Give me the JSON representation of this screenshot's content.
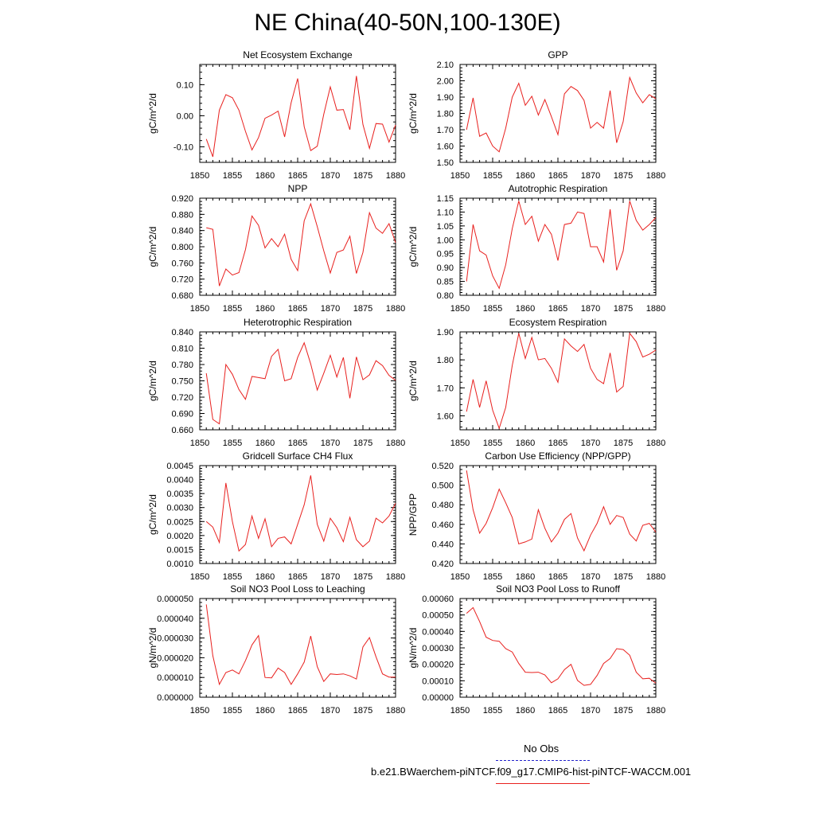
{
  "title": "NE China(40-50N,100-130E)",
  "colors": {
    "model": "#e8201e",
    "obs": "#2222cc",
    "axis": "#000000"
  },
  "legend": {
    "obs_label": "No Obs",
    "model_label": "b.e21.BWaerchem-piNTCF.f09_g17.CMIP6-hist-piNTCF-WACCM.001"
  },
  "chart_data": [
    {
      "type": "line",
      "title": "Net Ecosystem Exchange",
      "ylabel": "gC/m^2/d",
      "xlim": [
        1850,
        1880
      ],
      "ylim": [
        -0.15,
        0.165
      ],
      "xticks": [
        "1850",
        "1855",
        "1860",
        "1865",
        "1870",
        "1875",
        "1880"
      ],
      "yticks": [
        "-0.10",
        "0.00",
        "0.10"
      ],
      "x": [
        1851,
        1852,
        1853,
        1854,
        1855,
        1856,
        1857,
        1858,
        1859,
        1860,
        1861,
        1862,
        1863,
        1864,
        1865,
        1866,
        1867,
        1868,
        1869,
        1870,
        1871,
        1872,
        1873,
        1874,
        1875,
        1876,
        1877,
        1878,
        1879,
        1880
      ],
      "values": [
        -0.075,
        -0.132,
        0.018,
        0.068,
        0.058,
        0.018,
        -0.05,
        -0.11,
        -0.07,
        -0.008,
        0.002,
        0.015,
        -0.068,
        0.042,
        0.12,
        -0.035,
        -0.112,
        -0.098,
        0.005,
        0.093,
        0.018,
        0.02,
        -0.045,
        0.128,
        -0.028,
        -0.105,
        -0.025,
        -0.027,
        -0.085,
        -0.03
      ]
    },
    {
      "type": "line",
      "title": "GPP",
      "ylabel": "gC/m^2/d",
      "xlim": [
        1850,
        1880
      ],
      "ylim": [
        1.5,
        2.1
      ],
      "xticks": [
        "1850",
        "1855",
        "1860",
        "1865",
        "1870",
        "1875",
        "1880"
      ],
      "yticks": [
        "1.50",
        "1.60",
        "1.70",
        "1.80",
        "1.90",
        "2.00",
        "2.10"
      ],
      "x": [
        1851,
        1852,
        1853,
        1854,
        1855,
        1856,
        1857,
        1858,
        1859,
        1860,
        1861,
        1862,
        1863,
        1864,
        1865,
        1866,
        1867,
        1868,
        1869,
        1870,
        1871,
        1872,
        1873,
        1874,
        1875,
        1876,
        1877,
        1878,
        1879,
        1880
      ],
      "values": [
        1.7,
        1.895,
        1.66,
        1.68,
        1.6,
        1.565,
        1.71,
        1.9,
        1.985,
        1.85,
        1.905,
        1.79,
        1.885,
        1.78,
        1.67,
        1.92,
        1.965,
        1.94,
        1.88,
        1.71,
        1.745,
        1.71,
        1.94,
        1.62,
        1.75,
        2.02,
        1.925,
        1.865,
        1.915,
        1.89
      ]
    },
    {
      "type": "line",
      "title": "NPP",
      "ylabel": "gC/m^2/d",
      "xlim": [
        1850,
        1880
      ],
      "ylim": [
        0.68,
        0.92
      ],
      "xticks": [
        "1850",
        "1855",
        "1860",
        "1865",
        "1870",
        "1875",
        "1880"
      ],
      "yticks": [
        "0.680",
        "0.720",
        "0.760",
        "0.800",
        "0.840",
        "0.880",
        "0.920"
      ],
      "x": [
        1851,
        1852,
        1853,
        1854,
        1855,
        1856,
        1857,
        1858,
        1859,
        1860,
        1861,
        1862,
        1863,
        1864,
        1865,
        1866,
        1867,
        1868,
        1869,
        1870,
        1871,
        1872,
        1873,
        1874,
        1875,
        1876,
        1877,
        1878,
        1879,
        1880
      ],
      "values": [
        0.847,
        0.843,
        0.703,
        0.745,
        0.73,
        0.736,
        0.793,
        0.876,
        0.853,
        0.797,
        0.82,
        0.8,
        0.831,
        0.769,
        0.741,
        0.864,
        0.906,
        0.85,
        0.79,
        0.735,
        0.786,
        0.792,
        0.826,
        0.734,
        0.786,
        0.884,
        0.846,
        0.833,
        0.857,
        0.81
      ]
    },
    {
      "type": "line",
      "title": "Autotrophic Respiration",
      "ylabel": "gC/m^2/d",
      "xlim": [
        1850,
        1880
      ],
      "ylim": [
        0.8,
        1.15
      ],
      "xticks": [
        "1850",
        "1855",
        "1860",
        "1865",
        "1870",
        "1875",
        "1880"
      ],
      "yticks": [
        "0.80",
        "0.85",
        "0.90",
        "0.95",
        "1.00",
        "1.05",
        "1.10",
        "1.15"
      ],
      "x": [
        1851,
        1852,
        1853,
        1854,
        1855,
        1856,
        1857,
        1858,
        1859,
        1860,
        1861,
        1862,
        1863,
        1864,
        1865,
        1866,
        1867,
        1868,
        1869,
        1870,
        1871,
        1872,
        1873,
        1874,
        1875,
        1876,
        1877,
        1878,
        1879,
        1880
      ],
      "values": [
        0.85,
        1.055,
        0.96,
        0.945,
        0.87,
        0.825,
        0.91,
        1.04,
        1.14,
        1.055,
        1.085,
        0.995,
        1.055,
        1.02,
        0.925,
        1.055,
        1.06,
        1.1,
        1.095,
        0.975,
        0.975,
        0.92,
        1.11,
        0.89,
        0.96,
        1.14,
        1.07,
        1.035,
        1.055,
        1.08
      ]
    },
    {
      "type": "line",
      "title": "Heterotrophic Respiration",
      "ylabel": "gC/m^2/d",
      "xlim": [
        1850,
        1880
      ],
      "ylim": [
        0.66,
        0.84
      ],
      "xticks": [
        "1850",
        "1855",
        "1860",
        "1865",
        "1870",
        "1875",
        "1880"
      ],
      "yticks": [
        "0.660",
        "0.690",
        "0.720",
        "0.750",
        "0.780",
        "0.810",
        "0.840"
      ],
      "x": [
        1851,
        1852,
        1853,
        1854,
        1855,
        1856,
        1857,
        1858,
        1859,
        1860,
        1861,
        1862,
        1863,
        1864,
        1865,
        1866,
        1867,
        1868,
        1869,
        1870,
        1871,
        1872,
        1873,
        1874,
        1875,
        1876,
        1877,
        1878,
        1879,
        1880
      ],
      "values": [
        0.764,
        0.679,
        0.671,
        0.78,
        0.762,
        0.734,
        0.716,
        0.758,
        0.756,
        0.754,
        0.795,
        0.808,
        0.75,
        0.754,
        0.793,
        0.82,
        0.781,
        0.733,
        0.764,
        0.797,
        0.757,
        0.793,
        0.718,
        0.794,
        0.752,
        0.761,
        0.787,
        0.778,
        0.76,
        0.751
      ]
    },
    {
      "type": "line",
      "title": "Ecosystem Respiration",
      "ylabel": "gC/m^2/d",
      "xlim": [
        1850,
        1880
      ],
      "ylim": [
        1.55,
        1.9
      ],
      "xticks": [
        "1850",
        "1855",
        "1860",
        "1865",
        "1870",
        "1875",
        "1880"
      ],
      "yticks": [
        "1.60",
        "1.70",
        "1.80",
        "1.90"
      ],
      "x": [
        1851,
        1852,
        1853,
        1854,
        1855,
        1856,
        1857,
        1858,
        1859,
        1860,
        1861,
        1862,
        1863,
        1864,
        1865,
        1866,
        1867,
        1868,
        1869,
        1870,
        1871,
        1872,
        1873,
        1874,
        1875,
        1876,
        1877,
        1878,
        1879,
        1880
      ],
      "values": [
        1.615,
        1.73,
        1.63,
        1.725,
        1.62,
        1.555,
        1.63,
        1.78,
        1.895,
        1.805,
        1.88,
        1.8,
        1.805,
        1.77,
        1.72,
        1.875,
        1.85,
        1.83,
        1.855,
        1.77,
        1.73,
        1.715,
        1.825,
        1.685,
        1.705,
        1.895,
        1.865,
        1.81,
        1.82,
        1.835
      ]
    },
    {
      "type": "line",
      "title": "Gridcell Surface CH4 Flux",
      "ylabel": "gC/m^2/d",
      "xlim": [
        1850,
        1880
      ],
      "ylim": [
        0.001,
        0.0045
      ],
      "xticks": [
        "1850",
        "1855",
        "1860",
        "1865",
        "1870",
        "1875",
        "1880"
      ],
      "yticks": [
        "0.0010",
        "0.0015",
        "0.0020",
        "0.0025",
        "0.0030",
        "0.0035",
        "0.0040",
        "0.0045"
      ],
      "x": [
        1851,
        1852,
        1853,
        1854,
        1855,
        1856,
        1857,
        1858,
        1859,
        1860,
        1861,
        1862,
        1863,
        1864,
        1865,
        1866,
        1867,
        1868,
        1869,
        1870,
        1871,
        1872,
        1873,
        1874,
        1875,
        1876,
        1877,
        1878,
        1879,
        1880
      ],
      "values": [
        0.0025,
        0.0023,
        0.00175,
        0.00388,
        0.0025,
        0.00145,
        0.00168,
        0.0027,
        0.0019,
        0.0026,
        0.0016,
        0.0019,
        0.00195,
        0.0017,
        0.0024,
        0.0031,
        0.00415,
        0.0024,
        0.0018,
        0.00262,
        0.00228,
        0.00178,
        0.00265,
        0.00185,
        0.0016,
        0.0018,
        0.00262,
        0.00245,
        0.0027,
        0.00315
      ]
    },
    {
      "type": "line",
      "title": "Carbon Use Efficiency (NPP/GPP)",
      "ylabel": "NPP/GPP",
      "xlim": [
        1850,
        1880
      ],
      "ylim": [
        0.42,
        0.52
      ],
      "xticks": [
        "1850",
        "1855",
        "1860",
        "1865",
        "1870",
        "1875",
        "1880"
      ],
      "yticks": [
        "0.420",
        "0.440",
        "0.460",
        "0.480",
        "0.500",
        "0.520"
      ],
      "x": [
        1851,
        1852,
        1853,
        1854,
        1855,
        1856,
        1857,
        1858,
        1859,
        1860,
        1861,
        1862,
        1863,
        1864,
        1865,
        1866,
        1867,
        1868,
        1869,
        1870,
        1871,
        1872,
        1873,
        1874,
        1875,
        1876,
        1877,
        1878,
        1879,
        1880
      ],
      "values": [
        0.515,
        0.475,
        0.451,
        0.461,
        0.477,
        0.496,
        0.482,
        0.467,
        0.44,
        0.442,
        0.445,
        0.475,
        0.456,
        0.442,
        0.451,
        0.465,
        0.471,
        0.446,
        0.433,
        0.449,
        0.461,
        0.478,
        0.46,
        0.469,
        0.467,
        0.45,
        0.443,
        0.459,
        0.461,
        0.452
      ]
    },
    {
      "type": "line",
      "title": "Soil NO3 Pool Loss to Leaching",
      "ylabel": "gN/m^2/d",
      "xlim": [
        1850,
        1880
      ],
      "ylim": [
        0.0,
        5e-05
      ],
      "xticks": [
        "1850",
        "1855",
        "1860",
        "1865",
        "1870",
        "1875",
        "1880"
      ],
      "yticks": [
        "0.000000",
        "0.000010",
        "0.000020",
        "0.000030",
        "0.000040",
        "0.000050"
      ],
      "x": [
        1851,
        1852,
        1853,
        1854,
        1855,
        1856,
        1857,
        1858,
        1859,
        1860,
        1861,
        1862,
        1863,
        1864,
        1865,
        1866,
        1867,
        1868,
        1869,
        1870,
        1871,
        1872,
        1873,
        1874,
        1875,
        1876,
        1877,
        1878,
        1879,
        1880
      ],
      "values": [
        4.7e-05,
        2.1e-05,
        6.5e-06,
        1.25e-05,
        1.38e-05,
        1.18e-05,
        1.85e-05,
        2.65e-05,
        3.12e-05,
        1e-05,
        9.8e-06,
        1.48e-05,
        1.25e-05,
        6.5e-06,
        1.18e-05,
        1.78e-05,
        3.1e-05,
        1.55e-05,
        8e-06,
        1.18e-05,
        1.15e-05,
        1.18e-05,
        1.08e-05,
        9.2e-06,
        2.55e-05,
        3.02e-05,
        2.05e-05,
        1.18e-05,
        1.02e-05,
        1.02e-05
      ]
    },
    {
      "type": "line",
      "title": "Soil NO3 Pool Loss to Runoff",
      "ylabel": "gN/m^2/d",
      "xlim": [
        1850,
        1880
      ],
      "ylim": [
        0.0,
        0.0006
      ],
      "xticks": [
        "1850",
        "1855",
        "1860",
        "1865",
        "1870",
        "1875",
        "1880"
      ],
      "yticks": [
        "0.00000",
        "0.00010",
        "0.00020",
        "0.00030",
        "0.00040",
        "0.00050",
        "0.00060"
      ],
      "x": [
        1851,
        1852,
        1853,
        1854,
        1855,
        1856,
        1857,
        1858,
        1859,
        1860,
        1861,
        1862,
        1863,
        1864,
        1865,
        1866,
        1867,
        1868,
        1869,
        1870,
        1871,
        1872,
        1873,
        1874,
        1875,
        1876,
        1877,
        1878,
        1879,
        1880
      ],
      "values": [
        0.00051,
        0.000545,
        0.00046,
        0.000365,
        0.000345,
        0.00034,
        0.000295,
        0.000275,
        0.000205,
        0.000152,
        0.00015,
        0.000152,
        0.000135,
        8.8e-05,
        0.000112,
        0.000168,
        0.0002,
        0.000102,
        7.2e-05,
        7.8e-05,
        0.000132,
        0.000205,
        0.000235,
        0.000295,
        0.00029,
        0.000255,
        0.000152,
        0.000112,
        0.000115,
        8.5e-05
      ]
    }
  ]
}
